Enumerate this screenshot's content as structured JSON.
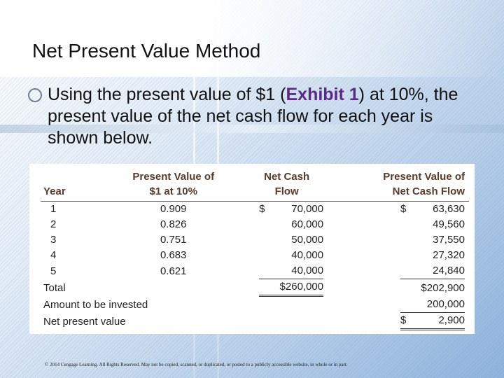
{
  "slide": {
    "title": "Net Present Value Method",
    "bullet": {
      "text_before": "Using the present value of $1 (",
      "highlight": "Exhibit 1",
      "text_after": ") at 10%, the present value of the net cash flow for each year is shown below."
    },
    "footer": "© 2014 Cengage Learning. All Rights Reserved. May not be copied, scanned, or duplicated, or posted to a publicly accessible website, in whole or in part."
  },
  "table": {
    "headers": {
      "year": "Year",
      "pv_line1": "Present Value of",
      "pv_line2": "$1 at 10%",
      "ncf_line1": "Net Cash",
      "ncf_line2": "Flow",
      "pvncf_line1": "Present Value of",
      "pvncf_line2": "Net Cash Flow"
    },
    "rows": [
      {
        "year": "1",
        "pv": "0.909",
        "ncf": "70,000",
        "pvncf": "63,630"
      },
      {
        "year": "2",
        "pv": "0.826",
        "ncf": "60,000",
        "pvncf": "49,560"
      },
      {
        "year": "3",
        "pv": "0.751",
        "ncf": "50,000",
        "pvncf": "37,550"
      },
      {
        "year": "4",
        "pv": "0.683",
        "ncf": "40,000",
        "pvncf": "27,320"
      },
      {
        "year": "5",
        "pv": "0.621",
        "ncf": "40,000",
        "pvncf": "24,840"
      }
    ],
    "dollar": "$",
    "total_label": "Total",
    "total_ncf": "$260,000",
    "total_pvncf": "$202,900",
    "invested_label": "Amount to be invested",
    "invested_value": "200,000",
    "npv_label": "Net present value",
    "npv_value": "2,900"
  }
}
